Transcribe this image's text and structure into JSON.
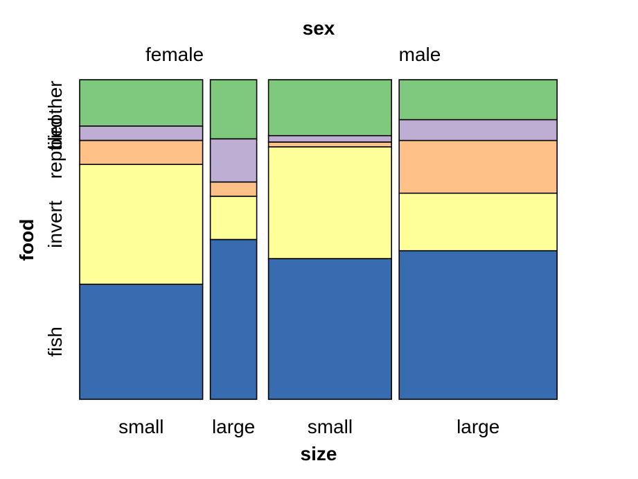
{
  "chart_data": {
    "type": "mosaic",
    "title": "",
    "col_title": "sex",
    "col_levels": [
      "female",
      "male"
    ],
    "xlabel": "size",
    "x_levels": [
      "small",
      "large"
    ],
    "ylabel": "food",
    "y_levels": [
      "fish",
      "invert",
      "reptile",
      "bird",
      "other"
    ],
    "colors": {
      "fish": "#386cb0",
      "invert": "#ffff99",
      "reptile": "#fdc086",
      "bird": "#beaed4",
      "other": "#7fc97f"
    },
    "column_widths": [
      {
        "sex": "female",
        "size": "small",
        "share": 0.257
      },
      {
        "sex": "female",
        "size": "large",
        "share": 0.097
      },
      {
        "sex": "male",
        "size": "small",
        "share": 0.257
      },
      {
        "sex": "male",
        "size": "large",
        "share": 0.33
      }
    ],
    "proportions": [
      {
        "sex": "female",
        "size": "small",
        "fish": 0.36,
        "invert": 0.375,
        "reptile": 0.075,
        "bird": 0.045,
        "other": 0.145
      },
      {
        "sex": "female",
        "size": "large",
        "fish": 0.5,
        "invert": 0.135,
        "reptile": 0.045,
        "bird": 0.135,
        "other": 0.185
      },
      {
        "sex": "male",
        "size": "small",
        "fish": 0.44,
        "invert": 0.35,
        "reptile": 0.015,
        "bird": 0.02,
        "other": 0.175
      },
      {
        "sex": "male",
        "size": "large",
        "fish": 0.465,
        "invert": 0.18,
        "reptile": 0.165,
        "bird": 0.065,
        "other": 0.125
      }
    ]
  }
}
